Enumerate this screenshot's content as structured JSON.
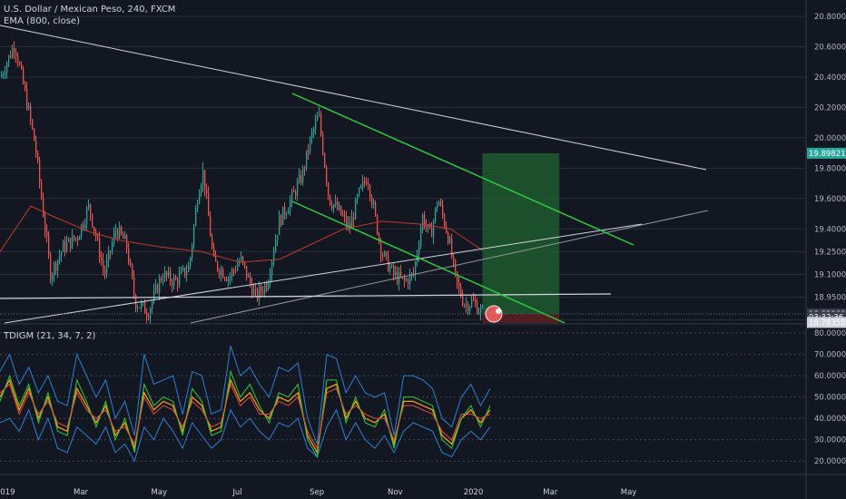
{
  "window": {
    "symbol_title": "U.S. Dollar / Mexican Peso, 240, FXCM",
    "study_ema": "EMA (800, close)",
    "study_tdigm": "TDIGM (21, 34, 7, 2)"
  },
  "colors": {
    "background": "#131722",
    "grid": "#2a2e39",
    "up_candle": "#26a69a",
    "down_candle": "#ef5350",
    "ema": "#c0392b",
    "trendline_white": "#d1d4dc",
    "channel_green": "#2ecc40",
    "target_zone": "#1f5a2e",
    "stop_zone": "#5a1f24",
    "tdi_blue": "#2d7fd1",
    "tdi_orange": "#f39c12",
    "tdi_green": "#2ecc40",
    "tdi_red": "#e74c3c"
  },
  "chart_data": [
    {
      "type": "candlestick",
      "title": "U.S. Dollar / Mexican Peso, 240, FXCM",
      "x_ticks": [
        "2019",
        "Mar",
        "May",
        "Jul",
        "Sep",
        "Nov",
        "2020",
        "Mar",
        "May"
      ],
      "y_ticks": [
        "20.80000",
        "20.60000",
        "20.40000",
        "20.20000",
        "20.00000",
        "19.80000",
        "19.60000",
        "19.40000",
        "19.25000",
        "19.10000",
        "18.95000",
        "18.80000"
      ],
      "ylim": [
        18.78,
        20.86
      ],
      "price_tags": [
        {
          "label": "19.89821",
          "value": 19.89821,
          "color": "#26a69a"
        },
        {
          "label": "18.83960",
          "value": 18.8396,
          "color": "#3a3e4a"
        },
        {
          "label": "03:32:36",
          "value": 18.8196,
          "color": "#3a3e4a"
        },
        {
          "label": "18.78358",
          "value": 18.78358,
          "color": "#d1d4dc"
        }
      ],
      "price_path": [
        {
          "date": "2018-12-28",
          "close": 20.4
        },
        {
          "date": "2019-01-08",
          "close": 20.62
        },
        {
          "date": "2019-01-16",
          "close": 20.3
        },
        {
          "date": "2019-01-24",
          "close": 19.95
        },
        {
          "date": "2019-02-05",
          "close": 19.1
        },
        {
          "date": "2019-02-15",
          "close": 19.28
        },
        {
          "date": "2019-02-26",
          "close": 19.35
        },
        {
          "date": "2019-03-07",
          "close": 19.55
        },
        {
          "date": "2019-03-19",
          "close": 19.1
        },
        {
          "date": "2019-03-28",
          "close": 19.4
        },
        {
          "date": "2019-04-05",
          "close": 19.3
        },
        {
          "date": "2019-04-12",
          "close": 18.92
        },
        {
          "date": "2019-04-22",
          "close": 18.85
        },
        {
          "date": "2019-05-03",
          "close": 19.1
        },
        {
          "date": "2019-05-13",
          "close": 19.05
        },
        {
          "date": "2019-05-24",
          "close": 19.15
        },
        {
          "date": "2019-05-31",
          "close": 19.65
        },
        {
          "date": "2019-06-04",
          "close": 19.78
        },
        {
          "date": "2019-06-12",
          "close": 19.18
        },
        {
          "date": "2019-06-24",
          "close": 19.08
        },
        {
          "date": "2019-07-03",
          "close": 19.2
        },
        {
          "date": "2019-07-15",
          "close": 18.95
        },
        {
          "date": "2019-07-24",
          "close": 19.05
        },
        {
          "date": "2019-08-02",
          "close": 19.45
        },
        {
          "date": "2019-08-12",
          "close": 19.6
        },
        {
          "date": "2019-08-20",
          "close": 19.75
        },
        {
          "date": "2019-08-27",
          "close": 20.0
        },
        {
          "date": "2019-09-02",
          "close": 20.15
        },
        {
          "date": "2019-09-10",
          "close": 19.6
        },
        {
          "date": "2019-09-19",
          "close": 19.5
        },
        {
          "date": "2019-09-26",
          "close": 19.4
        },
        {
          "date": "2019-10-03",
          "close": 19.62
        },
        {
          "date": "2019-10-10",
          "close": 19.75
        },
        {
          "date": "2019-10-21",
          "close": 19.25
        },
        {
          "date": "2019-10-30",
          "close": 19.1
        },
        {
          "date": "2019-11-08",
          "close": 19.05
        },
        {
          "date": "2019-11-15",
          "close": 19.1
        },
        {
          "date": "2019-11-22",
          "close": 19.48
        },
        {
          "date": "2019-11-28",
          "close": 19.35
        },
        {
          "date": "2019-12-04",
          "close": 19.6
        },
        {
          "date": "2019-12-12",
          "close": 19.35
        },
        {
          "date": "2019-12-18",
          "close": 19.05
        },
        {
          "date": "2019-12-25",
          "close": 18.9
        },
        {
          "date": "2019-12-31",
          "close": 18.92
        },
        {
          "date": "2020-01-08",
          "close": 18.84
        }
      ],
      "ema_path": [
        {
          "date": "2018-12-28",
          "close": 19.25
        },
        {
          "date": "2019-01-21",
          "close": 19.55
        },
        {
          "date": "2019-02-08",
          "close": 19.48
        },
        {
          "date": "2019-03-08",
          "close": 19.38
        },
        {
          "date": "2019-04-03",
          "close": 19.32
        },
        {
          "date": "2019-05-03",
          "close": 19.28
        },
        {
          "date": "2019-06-03",
          "close": 19.25
        },
        {
          "date": "2019-07-03",
          "close": 19.18
        },
        {
          "date": "2019-08-03",
          "close": 19.2
        },
        {
          "date": "2019-08-28",
          "close": 19.3
        },
        {
          "date": "2019-09-22",
          "close": 19.4
        },
        {
          "date": "2019-10-22",
          "close": 19.45
        },
        {
          "date": "2019-11-22",
          "close": 19.43
        },
        {
          "date": "2019-12-14",
          "close": 19.4
        },
        {
          "date": "2020-01-08",
          "close": 19.26
        }
      ],
      "drawings": {
        "long_position": {
          "entry": 18.8396,
          "target": 19.89821,
          "stop": 18.78,
          "start": "2020-01-08",
          "end": "2020-03-08"
        }
      }
    },
    {
      "type": "line",
      "title": "TDIGM (21, 34, 7, 2)",
      "y_ticks": [
        "80.00000",
        "70.00000",
        "60.00000",
        "50.00000",
        "40.00000",
        "30.00000",
        "20.00000"
      ],
      "ylim": [
        15,
        83
      ],
      "series": [
        {
          "color": "#2d7fd1",
          "values": [
            62,
            70,
            56,
            64,
            52,
            60,
            48,
            46,
            70,
            60,
            50,
            58,
            40,
            48,
            32,
            70,
            56,
            58,
            60,
            42,
            62,
            60,
            42,
            44,
            74,
            60,
            64,
            56,
            50,
            64,
            62,
            66,
            40,
            28,
            70,
            68,
            52,
            60,
            52,
            50,
            52,
            32,
            60,
            60,
            58,
            54,
            40,
            36,
            50,
            56,
            46,
            54
          ]
        },
        {
          "color": "#2d7fd1",
          "values": [
            38,
            40,
            34,
            44,
            30,
            40,
            26,
            24,
            36,
            32,
            28,
            36,
            24,
            28,
            20,
            36,
            30,
            40,
            34,
            26,
            38,
            32,
            26,
            30,
            44,
            36,
            40,
            34,
            30,
            38,
            36,
            40,
            26,
            22,
            36,
            44,
            30,
            38,
            30,
            26,
            32,
            24,
            34,
            38,
            36,
            34,
            24,
            22,
            30,
            34,
            30,
            36
          ]
        },
        {
          "color": "#f39c12",
          "values": [
            50,
            58,
            44,
            54,
            40,
            50,
            36,
            34,
            54,
            46,
            38,
            46,
            32,
            38,
            26,
            52,
            44,
            48,
            46,
            34,
            50,
            46,
            34,
            36,
            58,
            48,
            52,
            44,
            40,
            50,
            48,
            52,
            32,
            24,
            54,
            56,
            40,
            48,
            40,
            38,
            42,
            28,
            48,
            48,
            46,
            44,
            32,
            28,
            40,
            44,
            38,
            44
          ]
        },
        {
          "color": "#2ecc40",
          "values": [
            48,
            60,
            46,
            56,
            38,
            52,
            34,
            32,
            58,
            48,
            36,
            48,
            30,
            40,
            24,
            56,
            46,
            50,
            48,
            32,
            54,
            48,
            32,
            34,
            62,
            50,
            56,
            46,
            38,
            52,
            50,
            56,
            30,
            22,
            58,
            58,
            38,
            50,
            38,
            36,
            44,
            26,
            50,
            50,
            48,
            46,
            30,
            26,
            40,
            46,
            36,
            46
          ]
        },
        {
          "color": "#e74c3c",
          "values": [
            52,
            56,
            42,
            52,
            42,
            48,
            38,
            36,
            52,
            44,
            40,
            44,
            34,
            36,
            28,
            50,
            42,
            46,
            44,
            36,
            48,
            44,
            36,
            38,
            56,
            46,
            50,
            42,
            42,
            48,
            46,
            50,
            34,
            26,
            52,
            54,
            42,
            46,
            42,
            40,
            40,
            30,
            46,
            46,
            44,
            42,
            34,
            30,
            42,
            42,
            40,
            42
          ]
        }
      ]
    }
  ]
}
